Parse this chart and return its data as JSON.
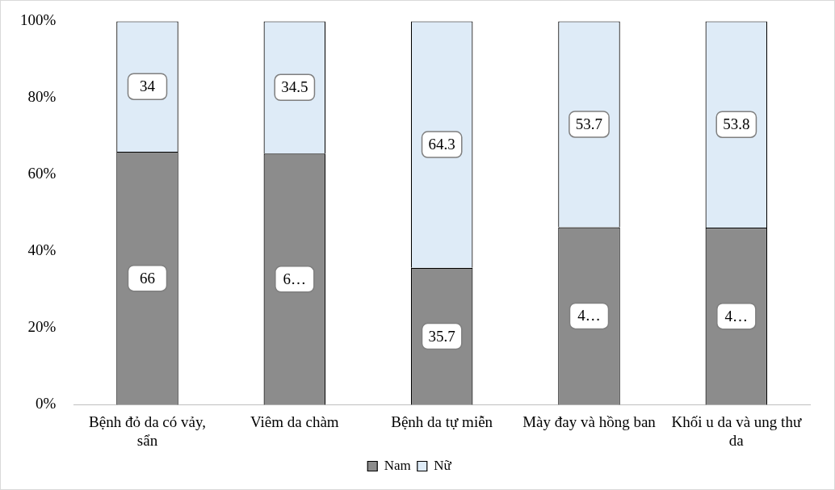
{
  "chart_data": {
    "type": "bar",
    "stacked": true,
    "categories": [
      "Bệnh đỏ da có vảy, sẩn",
      "Viêm da chàm",
      "Bệnh da tự miễn",
      "Mày đay và hồng ban",
      "Khối u da và ung thư da"
    ],
    "series": [
      {
        "name": "Nam",
        "color": "#8c8c8c",
        "values": [
          66,
          65.5,
          35.7,
          46.3,
          46.2
        ],
        "value_labels": [
          "66",
          "6…",
          "35.7",
          "4…",
          "4…"
        ]
      },
      {
        "name": "Nữ",
        "color": "#deebf7",
        "values": [
          34,
          34.5,
          64.3,
          53.7,
          53.8
        ],
        "value_labels": [
          "34",
          "34.5",
          "64.3",
          "53.7",
          "53.8"
        ]
      }
    ],
    "ylim": [
      0,
      100
    ],
    "yticks": [
      {
        "value": 0,
        "label": "0%"
      },
      {
        "value": 20,
        "label": "20%"
      },
      {
        "value": 40,
        "label": "40%"
      },
      {
        "value": 60,
        "label": "60%"
      },
      {
        "value": 80,
        "label": "80%"
      },
      {
        "value": 100,
        "label": "100%"
      }
    ],
    "grid": false,
    "legend": "bottom"
  }
}
